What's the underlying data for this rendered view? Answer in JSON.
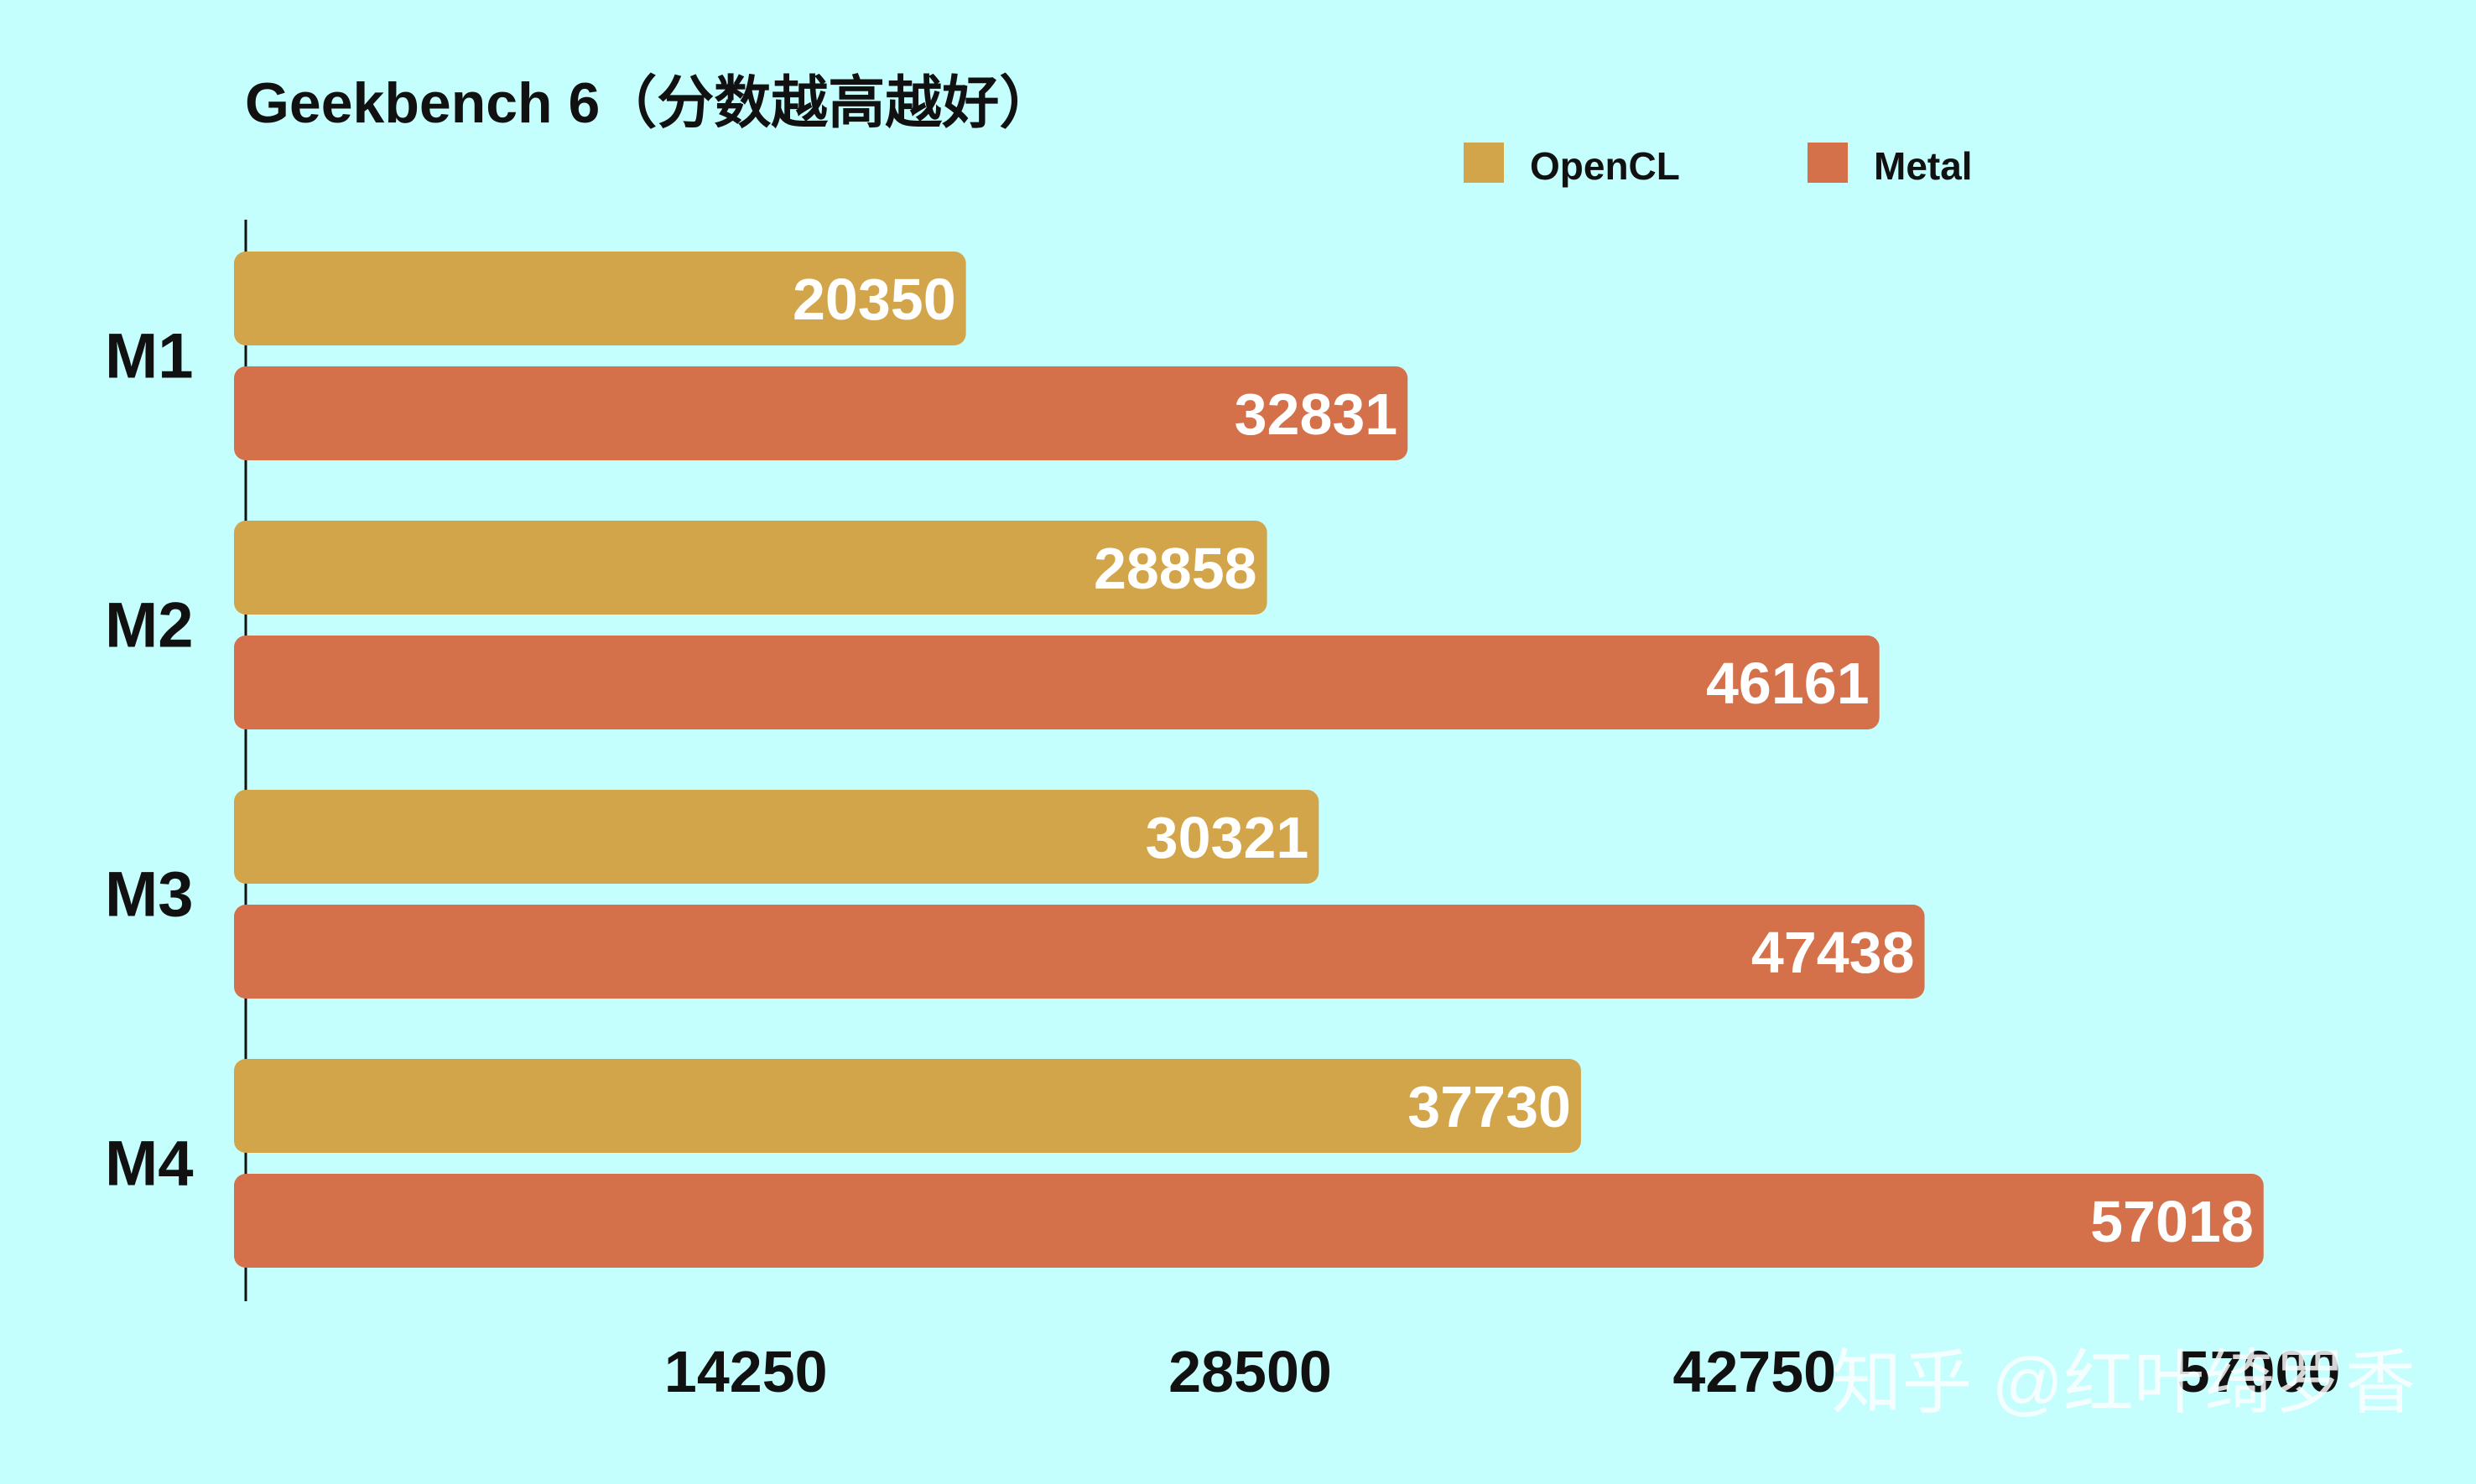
{
  "chart_data": {
    "type": "bar",
    "orientation": "horizontal",
    "title": "Geekbench 6（分数越高越好）",
    "categories": [
      "M1",
      "M2",
      "M3",
      "M4"
    ],
    "series": [
      {
        "name": "OpenCL",
        "color": "#d3a54b",
        "values": [
          20350,
          28858,
          30321,
          37730
        ]
      },
      {
        "name": "Metal",
        "color": "#d4704a",
        "values": [
          32831,
          46161,
          47438,
          57018
        ]
      }
    ],
    "xlim": [
      0,
      57000
    ],
    "x_ticks": [
      14250,
      28500,
      42750,
      57000
    ],
    "grid": false,
    "legend_position": "top-right",
    "xlabel": "",
    "ylabel": ""
  },
  "watermark": "知乎 @红叶绮罗香"
}
